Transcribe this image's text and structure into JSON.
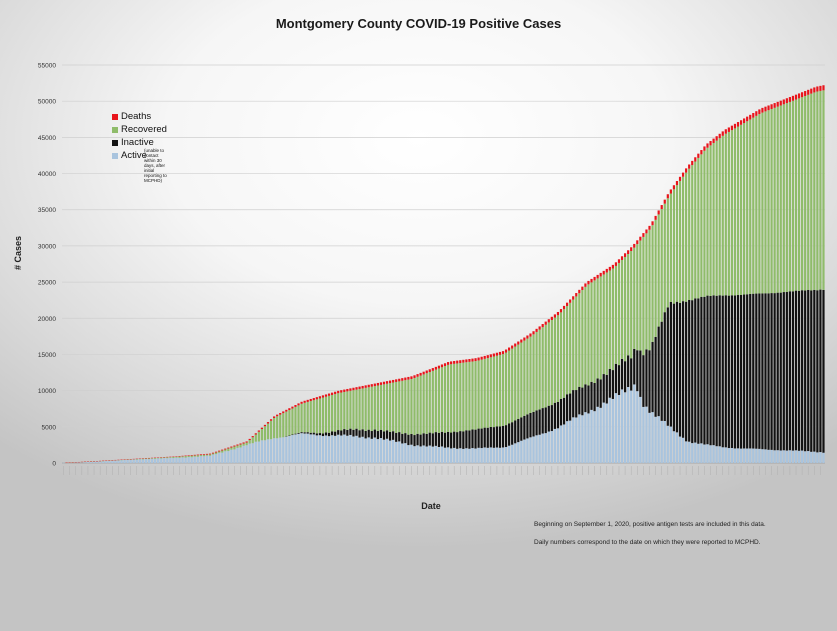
{
  "chart_data": {
    "type": "bar",
    "stacked": true,
    "title": "Montgomery County COVID-19 Positive Cases",
    "xlabel": "Date",
    "ylabel": "# Cases",
    "ylim": [
      0,
      55000
    ],
    "yticks": [
      0,
      5000,
      10000,
      15000,
      20000,
      25000,
      30000,
      35000,
      40000,
      45000,
      50000,
      55000
    ],
    "grid": true,
    "legend_position": "top-left",
    "bar_count": 250,
    "series": [
      {
        "name": "Deaths",
        "color": "#e8141b"
      },
      {
        "name": "Recovered",
        "color": "#8fbc6a"
      },
      {
        "name": "Inactive",
        "color": "#121212"
      },
      {
        "name": "Active",
        "color": "#a9c4de"
      }
    ],
    "inactive_note": "(unable to contact within 30 days, after initial reporting to MCPHD)",
    "totals_keyframes": [
      [
        0,
        30
      ],
      [
        20,
        300
      ],
      [
        40,
        600
      ],
      [
        60,
        900
      ],
      [
        80,
        1300
      ],
      [
        100,
        3000
      ],
      [
        115,
        6500
      ],
      [
        130,
        8500
      ],
      [
        150,
        10000
      ],
      [
        170,
        11000
      ],
      [
        190,
        12000
      ],
      [
        210,
        14000
      ],
      [
        225,
        14500
      ],
      [
        240,
        15500
      ],
      [
        255,
        18000
      ],
      [
        270,
        21000
      ],
      [
        285,
        25000
      ],
      [
        300,
        27500
      ],
      [
        310,
        30000
      ],
      [
        320,
        33000
      ],
      [
        330,
        37500
      ],
      [
        340,
        41000
      ],
      [
        350,
        44000
      ],
      [
        360,
        46000
      ],
      [
        370,
        47500
      ],
      [
        380,
        49000
      ],
      [
        390,
        50000
      ],
      [
        400,
        51000
      ],
      [
        410,
        52000
      ],
      [
        414,
        52200
      ]
    ],
    "active_keyframes": [
      [
        0,
        30
      ],
      [
        20,
        250
      ],
      [
        40,
        500
      ],
      [
        60,
        700
      ],
      [
        80,
        1000
      ],
      [
        100,
        2500
      ],
      [
        115,
        3500
      ],
      [
        130,
        4000
      ],
      [
        150,
        3800
      ],
      [
        170,
        3500
      ],
      [
        190,
        2500
      ],
      [
        210,
        2100
      ],
      [
        225,
        2000
      ],
      [
        240,
        2200
      ],
      [
        255,
        3500
      ],
      [
        270,
        5000
      ],
      [
        285,
        7000
      ],
      [
        300,
        9000
      ],
      [
        310,
        10500
      ],
      [
        312,
        11000
      ],
      [
        315,
        8500
      ],
      [
        320,
        7000
      ],
      [
        330,
        5000
      ],
      [
        340,
        3000
      ],
      [
        350,
        2500
      ],
      [
        360,
        2200
      ],
      [
        370,
        2000
      ],
      [
        390,
        1800
      ],
      [
        414,
        1500
      ]
    ],
    "inactive_keyframes": [
      [
        0,
        0
      ],
      [
        100,
        0
      ],
      [
        120,
        0
      ],
      [
        140,
        300
      ],
      [
        160,
        1000
      ],
      [
        180,
        1200
      ],
      [
        200,
        1800
      ],
      [
        220,
        2500
      ],
      [
        240,
        3000
      ],
      [
        260,
        3500
      ],
      [
        280,
        3800
      ],
      [
        300,
        4000
      ],
      [
        310,
        4500
      ],
      [
        320,
        9000
      ],
      [
        330,
        17000
      ],
      [
        340,
        19500
      ],
      [
        350,
        20500
      ],
      [
        360,
        21000
      ],
      [
        380,
        21500
      ],
      [
        414,
        22500
      ]
    ],
    "deaths_keyframes": [
      [
        0,
        0
      ],
      [
        60,
        60
      ],
      [
        100,
        150
      ],
      [
        130,
        280
      ],
      [
        150,
        330
      ],
      [
        200,
        380
      ],
      [
        250,
        420
      ],
      [
        300,
        500
      ],
      [
        350,
        600
      ],
      [
        414,
        700
      ]
    ],
    "x_range_days": [
      0,
      414
    ]
  },
  "footnotes": [
    "Beginning on September 1, 2020, positive antigen tests are included in this data.",
    "Daily numbers correspond to the date on which they were reported to MCPHD."
  ]
}
